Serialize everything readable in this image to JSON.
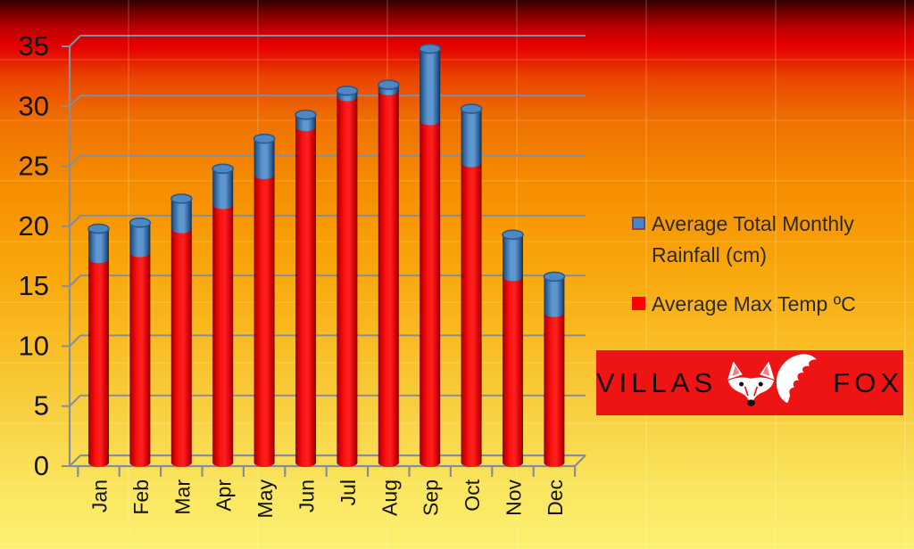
{
  "chart_data": {
    "type": "bar",
    "subtype": "3d-stacked-cylinder-column",
    "title": "",
    "xlabel": "",
    "ylabel": "",
    "categories": [
      "Jan",
      "Feb",
      "Mar",
      "Apr",
      "May",
      "Jun",
      "Jul",
      "Aug",
      "Sep",
      "Oct",
      "Nov",
      "Dec"
    ],
    "series": [
      {
        "name": "Average Total Monthly Rainfall (cm)",
        "color": "#4a86c6",
        "stack_position": "top",
        "values": [
          2.5,
          2.5,
          2.5,
          3,
          3,
          1,
          0.5,
          0.5,
          6,
          4.5,
          3.5,
          3
        ]
      },
      {
        "name": "Average Max Temp ºC",
        "color": "#ff0000",
        "stack_position": "bottom",
        "values": [
          17,
          17.5,
          19.5,
          21.5,
          24,
          28,
          30.5,
          31,
          28.5,
          25,
          15.5,
          12.5
        ]
      }
    ],
    "stacked_totals": [
      19.5,
      20,
      22,
      24.5,
      27,
      29,
      31,
      31.5,
      34.5,
      29.5,
      19,
      15.5
    ],
    "yticks": [
      0,
      5,
      10,
      15,
      20,
      25,
      30,
      35
    ],
    "ylim": [
      0,
      35
    ],
    "grid": true,
    "legend_position": "right"
  },
  "legend": {
    "items": [
      {
        "label": "Average Total Monthly Rainfall (cm)",
        "color": "#4a86c6"
      },
      {
        "label": "Average Max Temp ºC",
        "color": "#ff0000"
      }
    ]
  },
  "logo": {
    "text_left": "VILLAS",
    "text_right": "FOX",
    "background": "#ee1414",
    "icon": "fox-face-and-tail",
    "icon_color": "#ffffff"
  },
  "colors": {
    "background_top": "#2e0000",
    "background_red": "#e60000",
    "background_orange": "#f58c00",
    "background_bottom": "#fcf173",
    "grid_line": "#868e9d",
    "axis_text": "#141414",
    "legend_text": "#2e2a20",
    "bar_red": "#ff1c1c",
    "bar_blue": "#5b93cc"
  }
}
